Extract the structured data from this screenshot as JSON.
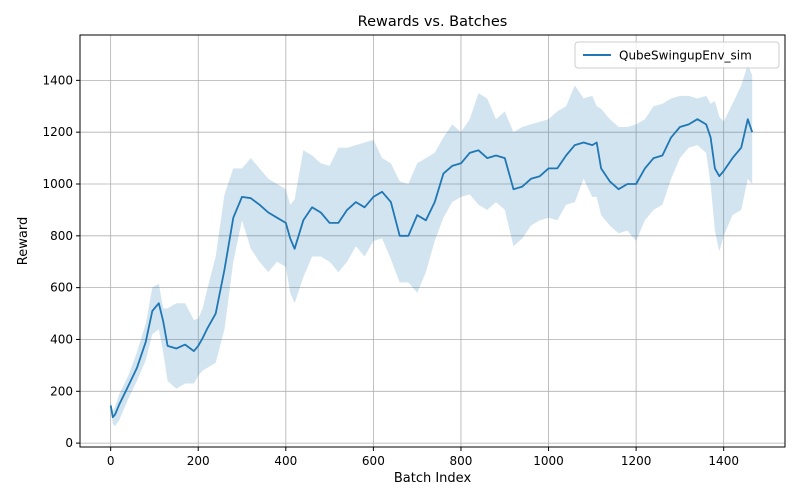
{
  "chart_data": {
    "type": "line",
    "title": "Rewards vs. Batches",
    "xlabel": "Batch Index",
    "ylabel": "Reward",
    "xlim": [
      -70,
      1540
    ],
    "ylim": [
      -15,
      1575
    ],
    "xticks": [
      0,
      200,
      400,
      600,
      800,
      1000,
      1200,
      1400
    ],
    "yticks": [
      0,
      200,
      400,
      600,
      800,
      1000,
      1200,
      1400
    ],
    "grid": true,
    "legend_position": "top-right",
    "colors": {
      "line": "#1f77b4",
      "band": "#1f77b4",
      "grid": "#b0b0b0"
    },
    "series": [
      {
        "name": "QubeSwingupEnv_sim",
        "x": [
          0,
          5,
          10,
          20,
          40,
          60,
          80,
          95,
          110,
          120,
          130,
          150,
          170,
          190,
          200,
          210,
          220,
          240,
          260,
          280,
          300,
          320,
          340,
          360,
          380,
          400,
          410,
          420,
          440,
          460,
          480,
          500,
          520,
          540,
          560,
          580,
          600,
          620,
          640,
          660,
          680,
          700,
          720,
          740,
          760,
          780,
          800,
          820,
          840,
          860,
          880,
          900,
          920,
          940,
          960,
          980,
          1000,
          1020,
          1040,
          1060,
          1080,
          1100,
          1110,
          1120,
          1140,
          1160,
          1180,
          1200,
          1220,
          1240,
          1260,
          1280,
          1300,
          1320,
          1340,
          1360,
          1370,
          1380,
          1390,
          1400,
          1420,
          1440,
          1455,
          1465
        ],
        "y": [
          145,
          100,
          110,
          150,
          220,
          290,
          390,
          510,
          540,
          470,
          375,
          365,
          380,
          355,
          375,
          405,
          440,
          500,
          670,
          870,
          950,
          945,
          920,
          890,
          870,
          850,
          790,
          750,
          860,
          910,
          890,
          850,
          850,
          900,
          930,
          910,
          950,
          970,
          930,
          800,
          800,
          880,
          860,
          930,
          1040,
          1070,
          1080,
          1120,
          1130,
          1100,
          1110,
          1100,
          980,
          990,
          1020,
          1030,
          1060,
          1060,
          1110,
          1150,
          1160,
          1150,
          1160,
          1060,
          1010,
          980,
          1000,
          1000,
          1060,
          1100,
          1110,
          1180,
          1220,
          1230,
          1250,
          1230,
          1180,
          1060,
          1030,
          1050,
          1100,
          1140,
          1250,
          1200
        ],
        "band_upper": [
          160,
          125,
          140,
          190,
          260,
          350,
          460,
          600,
          615,
          520,
          520,
          540,
          540,
          475,
          480,
          520,
          590,
          720,
          960,
          1060,
          1060,
          1100,
          1060,
          1020,
          1000,
          980,
          920,
          940,
          1130,
          1110,
          1080,
          1070,
          1140,
          1140,
          1150,
          1160,
          1170,
          1100,
          1080,
          1010,
          1000,
          1080,
          1100,
          1120,
          1180,
          1230,
          1200,
          1250,
          1350,
          1330,
          1250,
          1280,
          1200,
          1220,
          1230,
          1240,
          1250,
          1280,
          1300,
          1380,
          1330,
          1340,
          1300,
          1290,
          1250,
          1220,
          1220,
          1230,
          1250,
          1300,
          1310,
          1330,
          1340,
          1340,
          1330,
          1340,
          1310,
          1320,
          1260,
          1240,
          1310,
          1380,
          1460,
          1420
        ],
        "band_lower": [
          135,
          75,
          65,
          90,
          170,
          240,
          320,
          420,
          440,
          350,
          240,
          210,
          230,
          230,
          260,
          280,
          290,
          310,
          440,
          700,
          860,
          750,
          700,
          660,
          700,
          680,
          580,
          540,
          640,
          720,
          720,
          700,
          660,
          700,
          760,
          720,
          780,
          790,
          710,
          620,
          620,
          580,
          660,
          780,
          870,
          930,
          950,
          960,
          920,
          900,
          930,
          900,
          760,
          790,
          840,
          860,
          870,
          860,
          920,
          930,
          1020,
          950,
          950,
          880,
          840,
          810,
          820,
          780,
          860,
          900,
          920,
          1020,
          1100,
          1140,
          1150,
          1120,
          1000,
          820,
          740,
          800,
          880,
          900,
          1020,
          1000
        ]
      }
    ]
  }
}
